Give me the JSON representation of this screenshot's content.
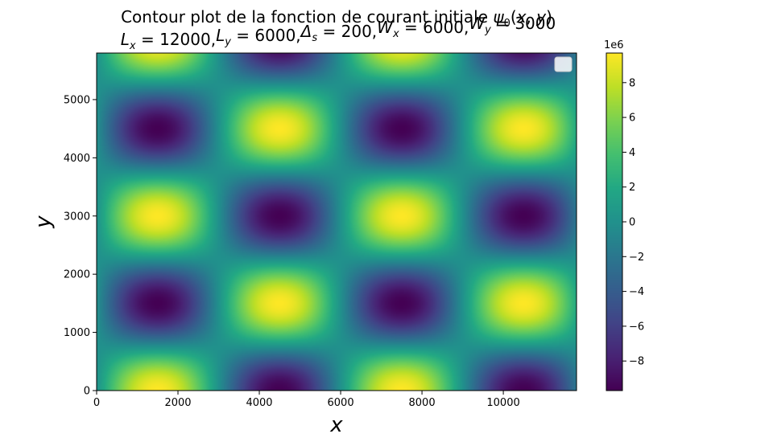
{
  "chart_data": {
    "type": "heatmap",
    "title_line1_prefix": "Contour plot de la fonction de courant initiale ",
    "title_math": {
      "psi": "ψ",
      "psi_sub": "0",
      "args_open": "(",
      "x": "x",
      "comma": ", ",
      "y": "y",
      "args_close": ")"
    },
    "title_line2": [
      {
        "sym": "L",
        "sub": "x",
        "rhs": " = 12000,"
      },
      {
        "sym": "L",
        "sub": "y",
        "rhs": " = 6000,"
      },
      {
        "sym": "Δ",
        "sub": "s",
        "rhs": " = 200,"
      },
      {
        "sym": "W",
        "sub": "x",
        "rhs": " = 6000,"
      },
      {
        "sym": "W",
        "sub": "y",
        "rhs": " = 3000"
      }
    ],
    "xlabel": "x",
    "ylabel": "y",
    "xlim": [
      0,
      11800
    ],
    "ylim": [
      0,
      5800
    ],
    "x_ticks": [
      0,
      2000,
      4000,
      6000,
      8000,
      10000
    ],
    "x_tick_labels": [
      "0",
      "2000",
      "4000",
      "6000",
      "8000",
      "10000"
    ],
    "y_ticks": [
      0,
      1000,
      2000,
      3000,
      4000,
      5000
    ],
    "y_tick_labels": [
      "0",
      "1000",
      "2000",
      "3000",
      "4000",
      "5000"
    ],
    "field": {
      "amplitude": 9700000,
      "period_x": 6000,
      "period_y": 3000,
      "peak_x": 1500,
      "peak_y": 0
    },
    "colormap": "viridis",
    "colorbar": {
      "vmin": -9700000,
      "vmax": 9700000,
      "offset_label": "1e6",
      "ticks": [
        -8,
        -6,
        -4,
        -2,
        0,
        2,
        4,
        6,
        8
      ],
      "tick_labels": [
        "−8",
        "−6",
        "−4",
        "−2",
        "0",
        "2",
        "4",
        "6",
        "8"
      ]
    },
    "legend": {
      "placement": "top-right",
      "entries": []
    }
  }
}
